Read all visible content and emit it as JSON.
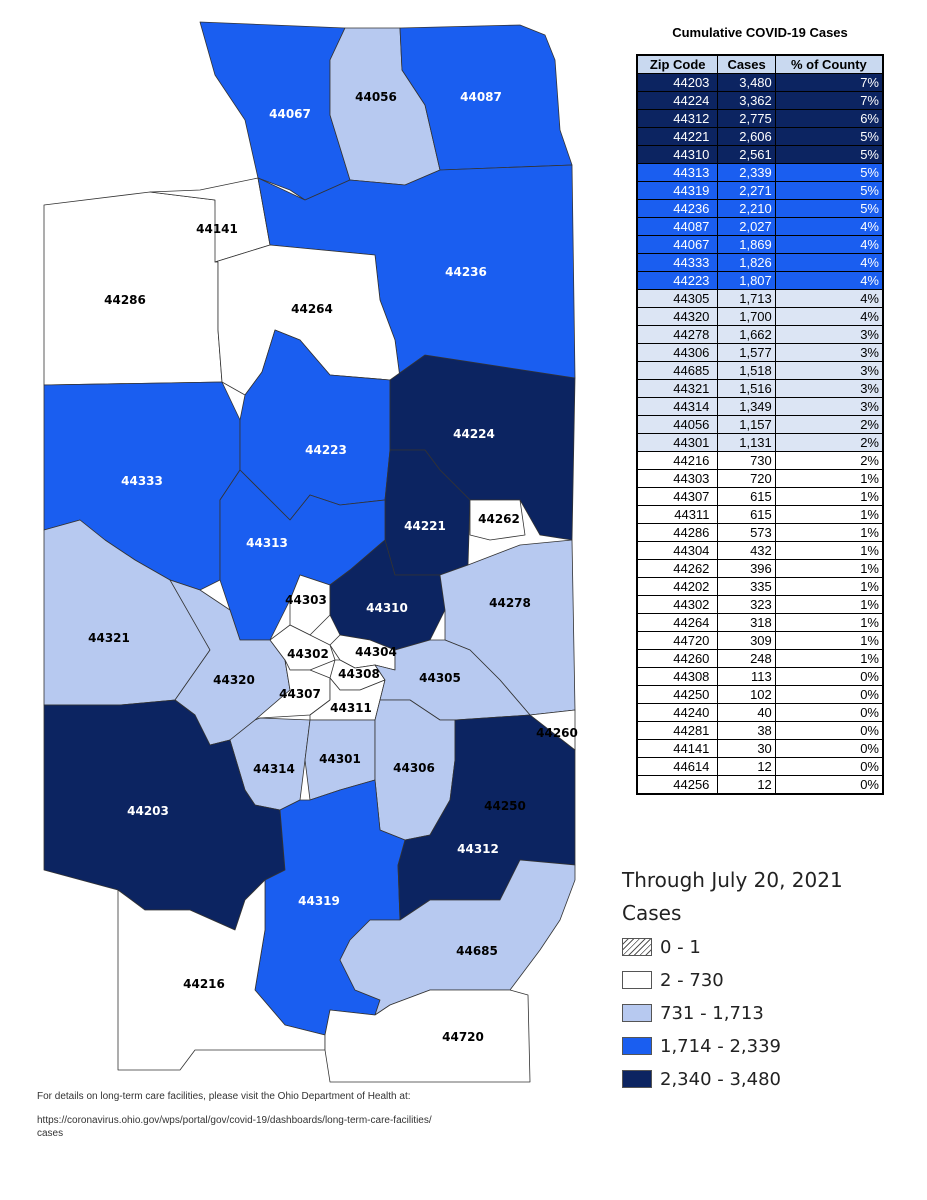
{
  "table": {
    "title": "Cumulative COVID-19 Cases",
    "headers": [
      "Zip Code",
      "Cases",
      "% of County"
    ],
    "rows": [
      {
        "zip": "44203",
        "cases": "3,480",
        "pct": "7%",
        "tier": 4
      },
      {
        "zip": "44224",
        "cases": "3,362",
        "pct": "7%",
        "tier": 4
      },
      {
        "zip": "44312",
        "cases": "2,775",
        "pct": "6%",
        "tier": 4
      },
      {
        "zip": "44221",
        "cases": "2,606",
        "pct": "5%",
        "tier": 4
      },
      {
        "zip": "44310",
        "cases": "2,561",
        "pct": "5%",
        "tier": 4
      },
      {
        "zip": "44313",
        "cases": "2,339",
        "pct": "5%",
        "tier": 3
      },
      {
        "zip": "44319",
        "cases": "2,271",
        "pct": "5%",
        "tier": 3
      },
      {
        "zip": "44236",
        "cases": "2,210",
        "pct": "5%",
        "tier": 3
      },
      {
        "zip": "44087",
        "cases": "2,027",
        "pct": "4%",
        "tier": 3
      },
      {
        "zip": "44067",
        "cases": "1,869",
        "pct": "4%",
        "tier": 3
      },
      {
        "zip": "44333",
        "cases": "1,826",
        "pct": "4%",
        "tier": 3
      },
      {
        "zip": "44223",
        "cases": "1,807",
        "pct": "4%",
        "tier": 3
      },
      {
        "zip": "44305",
        "cases": "1,713",
        "pct": "4%",
        "tier": 2
      },
      {
        "zip": "44320",
        "cases": "1,700",
        "pct": "4%",
        "tier": 2
      },
      {
        "zip": "44278",
        "cases": "1,662",
        "pct": "3%",
        "tier": 2
      },
      {
        "zip": "44306",
        "cases": "1,577",
        "pct": "3%",
        "tier": 2
      },
      {
        "zip": "44685",
        "cases": "1,518",
        "pct": "3%",
        "tier": 2
      },
      {
        "zip": "44321",
        "cases": "1,516",
        "pct": "3%",
        "tier": 2
      },
      {
        "zip": "44314",
        "cases": "1,349",
        "pct": "3%",
        "tier": 2
      },
      {
        "zip": "44056",
        "cases": "1,157",
        "pct": "2%",
        "tier": 2
      },
      {
        "zip": "44301",
        "cases": "1,131",
        "pct": "2%",
        "tier": 2
      },
      {
        "zip": "44216",
        "cases": "730",
        "pct": "2%",
        "tier": 1
      },
      {
        "zip": "44303",
        "cases": "720",
        "pct": "1%",
        "tier": 1
      },
      {
        "zip": "44307",
        "cases": "615",
        "pct": "1%",
        "tier": 1
      },
      {
        "zip": "44311",
        "cases": "615",
        "pct": "1%",
        "tier": 1
      },
      {
        "zip": "44286",
        "cases": "573",
        "pct": "1%",
        "tier": 1
      },
      {
        "zip": "44304",
        "cases": "432",
        "pct": "1%",
        "tier": 1
      },
      {
        "zip": "44262",
        "cases": "396",
        "pct": "1%",
        "tier": 1
      },
      {
        "zip": "44202",
        "cases": "335",
        "pct": "1%",
        "tier": 1
      },
      {
        "zip": "44302",
        "cases": "323",
        "pct": "1%",
        "tier": 1
      },
      {
        "zip": "44264",
        "cases": "318",
        "pct": "1%",
        "tier": 1
      },
      {
        "zip": "44720",
        "cases": "309",
        "pct": "1%",
        "tier": 1
      },
      {
        "zip": "44260",
        "cases": "248",
        "pct": "1%",
        "tier": 1
      },
      {
        "zip": "44308",
        "cases": "113",
        "pct": "0%",
        "tier": 1
      },
      {
        "zip": "44250",
        "cases": "102",
        "pct": "0%",
        "tier": 1
      },
      {
        "zip": "44240",
        "cases": "40",
        "pct": "0%",
        "tier": 1
      },
      {
        "zip": "44281",
        "cases": "38",
        "pct": "0%",
        "tier": 1
      },
      {
        "zip": "44141",
        "cases": "30",
        "pct": "0%",
        "tier": 1
      },
      {
        "zip": "44614",
        "cases": "12",
        "pct": "0%",
        "tier": 1
      },
      {
        "zip": "44256",
        "cases": "12",
        "pct": "0%",
        "tier": 1
      }
    ]
  },
  "legend": {
    "date_text": "Through July 20, 2021",
    "heading": "Cases",
    "items": [
      {
        "label": "0 - 1",
        "pattern": "hatch",
        "color": "#ffffff"
      },
      {
        "label": "2 - 730",
        "color": "#ffffff"
      },
      {
        "label": "731 - 1,713",
        "color": "#b7c9f0"
      },
      {
        "label": "1,714 - 2,339",
        "color": "#1a5ef0"
      },
      {
        "label": "2,340 - 3,480",
        "color": "#0c2461"
      }
    ]
  },
  "map": {
    "tier_colors": {
      "1": "#ffffff",
      "2": "#b7c9f0",
      "3": "#1a5ef0",
      "4": "#0c2461"
    },
    "zip_labels": [
      "44067",
      "44056",
      "44087",
      "44141",
      "44286",
      "44264",
      "44236",
      "44223",
      "44224",
      "44333",
      "44221",
      "44262",
      "44313",
      "44303",
      "44310",
      "44278",
      "44321",
      "44302",
      "44304",
      "44308",
      "44320",
      "44305",
      "44307",
      "44311",
      "44260",
      "44314",
      "44301",
      "44306",
      "44203",
      "44250",
      "44312",
      "44319",
      "44685",
      "44216",
      "44720"
    ]
  },
  "footer": {
    "line1": "For details on long-term care facilities, please visit the Ohio Department of Health at:",
    "line2": "https://coronavirus.ohio.gov/wps/portal/gov/covid-19/dashboards/long-term-care-facilities/",
    "line3": "cases"
  }
}
